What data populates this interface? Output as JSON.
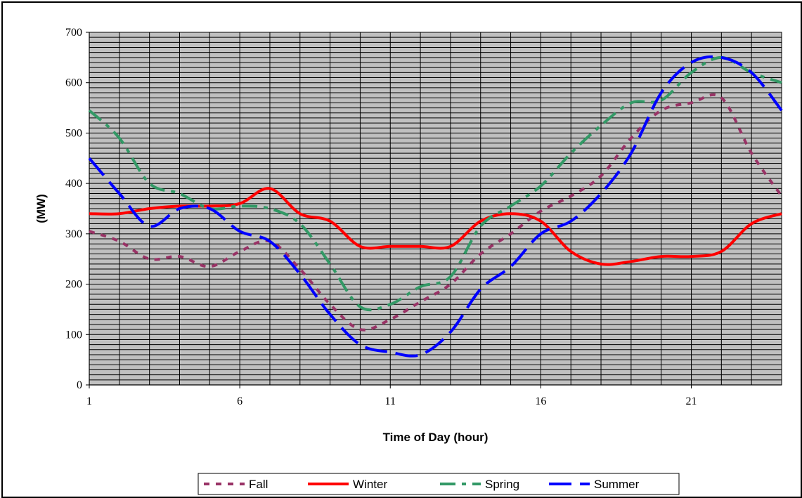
{
  "chart_data": {
    "type": "line",
    "title": "",
    "xlabel": "Time of Day (hour)",
    "ylabel": "(MW)",
    "xlim": [
      1,
      24
    ],
    "ylim": [
      0,
      700
    ],
    "x_ticks": [
      1,
      6,
      11,
      16,
      21
    ],
    "x_tick_labels": [
      "1",
      "6",
      "11",
      "16",
      "21"
    ],
    "y_ticks": [
      0,
      100,
      200,
      300,
      400,
      500,
      600,
      700
    ],
    "y_tick_labels": [
      "0",
      "100",
      "200",
      "300",
      "400",
      "500",
      "600",
      "700"
    ],
    "plot_background": "#c0c0c0",
    "grid": "on",
    "legend_position": "bottom",
    "x": [
      1,
      2,
      3,
      4,
      5,
      6,
      7,
      8,
      9,
      10,
      11,
      12,
      13,
      14,
      15,
      16,
      17,
      18,
      19,
      20,
      21,
      22,
      23,
      24
    ],
    "series": [
      {
        "name": "Fall",
        "color": "#993366",
        "dash": "dotted",
        "values": [
          305,
          285,
          250,
          255,
          235,
          265,
          285,
          230,
          160,
          110,
          130,
          165,
          200,
          260,
          300,
          345,
          375,
          415,
          490,
          545,
          560,
          570,
          460,
          375
        ]
      },
      {
        "name": "Winter",
        "color": "#ff0000",
        "dash": "solid",
        "values": [
          340,
          340,
          350,
          355,
          355,
          360,
          390,
          340,
          325,
          275,
          275,
          275,
          275,
          325,
          340,
          325,
          265,
          240,
          245,
          255,
          255,
          265,
          320,
          340
        ]
      },
      {
        "name": "Spring",
        "color": "#339966",
        "dash": "dashdot",
        "values": [
          545,
          490,
          400,
          380,
          350,
          355,
          350,
          320,
          240,
          155,
          160,
          195,
          215,
          315,
          355,
          395,
          460,
          515,
          560,
          565,
          620,
          650,
          620,
          600
        ]
      },
      {
        "name": "Summer",
        "color": "#0000ff",
        "dash": "longdash",
        "values": [
          450,
          380,
          315,
          350,
          350,
          305,
          285,
          220,
          140,
          80,
          65,
          60,
          105,
          190,
          235,
          300,
          325,
          380,
          460,
          580,
          640,
          650,
          620,
          545
        ]
      }
    ]
  }
}
